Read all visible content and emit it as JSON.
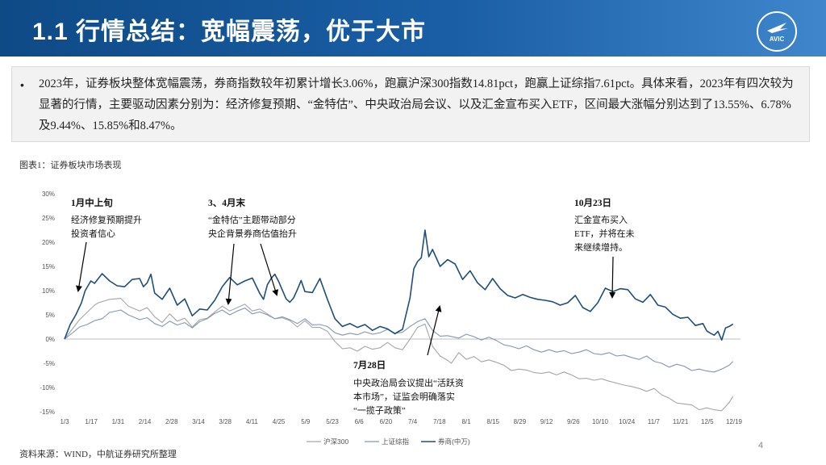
{
  "header": {
    "title": "1.1 行情总结：宽幅震荡，优于大市",
    "logo_text": "AVIC"
  },
  "summary": {
    "bullet": "•",
    "text": "2023年，证券板块整体宽幅震荡，券商指数较年初累计增长3.06%，跑赢沪深300指数14.81pct，跑赢上证综指7.61pct。具体来看，2023年有四次较为显著的行情，主要驱动因素分别为：经济修复预期、“金特估”、中央政治局会议、以及汇金宣布买入ETF，区间最大涨幅分别达到了13.55%、6.78%及9.44%、15.85%和8.47%。"
  },
  "figure": {
    "title": "图表1：证券板块市场表现",
    "source": "资料来源：WIND，中航证券研究所整理",
    "page_number": "4"
  },
  "annotations": [
    {
      "title": "1月中上旬",
      "lines": [
        "经济修复预期提升",
        "投资者信心"
      ]
    },
    {
      "title": "3、4月末",
      "lines": [
        "“金特估”主题带动部分",
        "央企背景券商估值抬升"
      ]
    },
    {
      "title": "10月23日",
      "lines": [
        "汇金宣布买入",
        "ETF，并将在未",
        "来继续增持。"
      ]
    },
    {
      "title": "7月28日",
      "lines": [
        "中央政治局会议提出“活跃资",
        "本市场”，证监会明确落实",
        "“一揽子政策”"
      ]
    }
  ],
  "chart_data": {
    "type": "line",
    "ylim": [
      -15,
      30
    ],
    "yticks": [
      "30%",
      "25%",
      "20%",
      "15%",
      "10%",
      "5%",
      "0%",
      "-5%",
      "-10%",
      "-15%"
    ],
    "xlim": [
      0,
      360
    ],
    "xticks": [
      "1/3",
      "1/17",
      "1/31",
      "2/14",
      "2/28",
      "3/14",
      "3/28",
      "4/11",
      "4/25",
      "5/9",
      "5/23",
      "6/6",
      "6/20",
      "7/4",
      "7/18",
      "8/1",
      "8/15",
      "8/29",
      "9/12",
      "9/26",
      "10/10",
      "10/24",
      "11/7",
      "11/21",
      "12/5",
      "12/19"
    ],
    "legend": "bottom",
    "series": [
      {
        "name": "沪深300",
        "color": "#a6a6a6",
        "x": [
          0,
          5,
          8,
          12,
          16,
          18,
          24,
          30,
          34,
          40,
          44,
          48,
          52,
          56,
          60,
          64,
          68,
          72,
          76,
          80,
          84,
          88,
          92,
          96,
          100,
          104,
          108,
          112,
          116,
          120,
          124,
          128,
          132,
          136,
          140,
          144,
          148,
          152,
          156,
          160,
          164,
          168,
          172,
          176,
          180,
          184,
          188,
          192,
          196,
          200,
          204,
          206,
          210,
          214,
          218,
          222,
          226,
          230,
          234,
          238,
          242,
          246,
          250,
          254,
          258,
          262,
          266,
          270,
          274,
          278,
          282,
          286,
          290,
          294,
          298,
          302,
          306,
          310,
          314,
          318,
          322,
          326,
          330,
          334,
          338,
          342,
          346,
          350,
          354,
          356
        ],
        "y": [
          0,
          2.5,
          4,
          5.5,
          7,
          7.5,
          8.2,
          8.4,
          6.8,
          5.8,
          6.5,
          4.6,
          3.4,
          5.2,
          3.7,
          4.3,
          2.5,
          4,
          4.3,
          5.6,
          6.8,
          5.8,
          6.5,
          7.2,
          5.8,
          6.2,
          5.2,
          4.2,
          4.4,
          3.8,
          2.5,
          3.8,
          2.4,
          2.4,
          1.6,
          -0.5,
          -2,
          -1.8,
          -2.5,
          -1.5,
          -2.1,
          -1.8,
          -0.7,
          -1.8,
          -2.2,
          0,
          2.4,
          3.1,
          -1.5,
          -3.5,
          -4.4,
          -5,
          -2.8,
          -4.2,
          -3.6,
          -4.7,
          -4.3,
          -4.8,
          -5.4,
          -6.5,
          -6.2,
          -6.4,
          -6.9,
          -7.1,
          -6.8,
          -7.4,
          -6.8,
          -7.4,
          -8.2,
          -8.1,
          -8.5,
          -8.2,
          -8.7,
          -9.1,
          -9.5,
          -9.8,
          -10.2,
          -10.8,
          -10.2,
          -11.5,
          -12.2,
          -13.2,
          -13.4,
          -13.6,
          -14.6,
          -14.2,
          -14.6,
          -14.8,
          -13.1,
          -11.8
        ]
      },
      {
        "name": "上证综指",
        "color": "#8497b0",
        "x": [
          0,
          5,
          8,
          12,
          16,
          20,
          24,
          30,
          34,
          40,
          44,
          48,
          52,
          56,
          60,
          64,
          68,
          72,
          76,
          80,
          84,
          88,
          92,
          96,
          100,
          104,
          108,
          112,
          116,
          120,
          124,
          128,
          132,
          136,
          140,
          144,
          148,
          152,
          156,
          160,
          164,
          168,
          172,
          176,
          180,
          184,
          188,
          192,
          196,
          200,
          204,
          210,
          214,
          218,
          222,
          226,
          230,
          234,
          238,
          242,
          246,
          250,
          254,
          258,
          262,
          266,
          270,
          274,
          278,
          282,
          286,
          290,
          294,
          298,
          302,
          306,
          310,
          314,
          318,
          322,
          326,
          330,
          334,
          338,
          342,
          346,
          350,
          354,
          356
        ],
        "y": [
          0,
          1.5,
          2.5,
          3,
          3.8,
          4.2,
          5.5,
          6,
          5,
          4,
          4.4,
          3.2,
          2.6,
          3.7,
          2.9,
          3.4,
          2.3,
          3.6,
          4.2,
          5.3,
          6,
          5,
          5.8,
          6.4,
          5.2,
          5.6,
          5,
          4.2,
          4.6,
          4,
          3.2,
          4.2,
          2.9,
          3,
          2.6,
          1.3,
          0.8,
          1.2,
          0.9,
          1.5,
          1,
          1.3,
          2,
          1.2,
          1.4,
          2.6,
          3.6,
          4.2,
          1.8,
          0.6,
          0.7,
          0.2,
          1,
          0.5,
          -0.2,
          0.4,
          -0.3,
          -1.2,
          -1.5,
          -2,
          -1.4,
          -2.2,
          -2.7,
          -2.2,
          -2.7,
          -2.4,
          -3,
          -2.7,
          -2.2,
          -3,
          -3.2,
          -2.8,
          -3.5,
          -3.3,
          -3.8,
          -4.2,
          -3.5,
          -4.6,
          -5,
          -5.8,
          -5.2,
          -5.6,
          -6.5,
          -6.2,
          -6.6,
          -6.8,
          -6.2,
          -5.4,
          -4.6
        ]
      },
      {
        "name": "券商(中万)",
        "color": "#1f4e79",
        "x": [
          0,
          3,
          6,
          9,
          11,
          14,
          16,
          18,
          20,
          24,
          28,
          32,
          36,
          40,
          42,
          44,
          46,
          48,
          52,
          56,
          60,
          64,
          68,
          72,
          76,
          80,
          84,
          86,
          88,
          92,
          96,
          100,
          104,
          106,
          108,
          110,
          112,
          114,
          118,
          120,
          122,
          124,
          126,
          128,
          132,
          136,
          140,
          144,
          148,
          152,
          156,
          160,
          164,
          168,
          172,
          176,
          178,
          180,
          184,
          186,
          188,
          190,
          192,
          194,
          196,
          200,
          204,
          208,
          212,
          216,
          220,
          224,
          228,
          232,
          236,
          240,
          244,
          248,
          252,
          256,
          260,
          264,
          268,
          272,
          276,
          280,
          284,
          288,
          292,
          296,
          300,
          304,
          308,
          312,
          316,
          320,
          324,
          328,
          332,
          336,
          340,
          342,
          344,
          346,
          348,
          350,
          352,
          354,
          356
        ],
        "y": [
          0,
          3,
          5,
          7.5,
          10,
          12,
          11.5,
          12.5,
          13.5,
          12,
          11,
          10.8,
          12.3,
          12.5,
          10.8,
          11.6,
          13.4,
          9.5,
          8.2,
          10.5,
          7,
          8.3,
          4.8,
          6.2,
          6,
          8,
          10.8,
          11.8,
          12.7,
          11.2,
          12,
          12.6,
          9.4,
          8.2,
          11.2,
          12.5,
          13.4,
          11.9,
          8.3,
          7.6,
          8.5,
          10.2,
          12.1,
          9.8,
          9.6,
          12.5,
          8.2,
          4.2,
          2.6,
          3.2,
          2.4,
          3,
          1.8,
          2.6,
          2.1,
          1.1,
          1.6,
          2,
          8.5,
          14.5,
          16,
          16.8,
          22.5,
          17,
          18.5,
          15,
          16.4,
          15.5,
          12.3,
          14.1,
          11.6,
          10.2,
          12.5,
          10.4,
          9,
          8.5,
          9.2,
          8.6,
          8.2,
          8,
          7.7,
          7,
          7.5,
          9,
          6.5,
          5.7,
          7.5,
          10.5,
          9.8,
          10.4,
          10.2,
          8.3,
          7.6,
          9.2,
          7,
          6.6,
          5.1,
          4.3,
          4.5,
          2.8,
          3.2,
          1.7,
          1.2,
          0.8,
          1.6,
          -0.2,
          2.3,
          2.6,
          3.1
        ]
      }
    ]
  }
}
